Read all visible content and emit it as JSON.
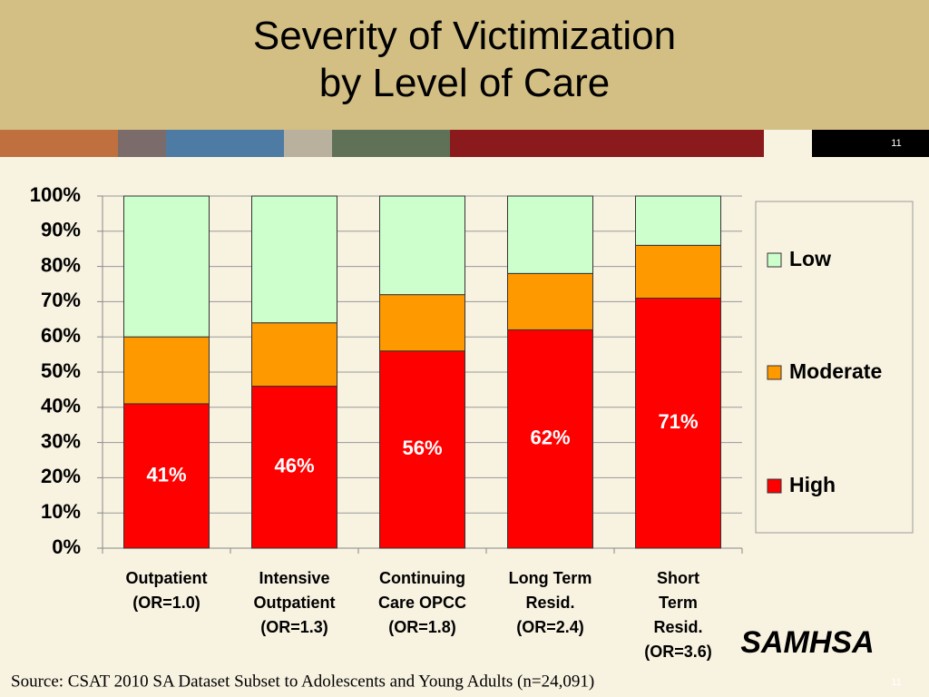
{
  "page_number": "11",
  "source": "Source: CSAT 2010 SA Dataset Subset to Adolescents and Young Adults (n=24,091)",
  "logo": "SAMHSA",
  "chart_data": {
    "type": "stacked_bar",
    "title": "Severity of Victimization\nby Level of Care",
    "categories": [
      "Outpatient\n(OR=1.0)",
      "Intensive\nOutpatient\n(OR=1.3)",
      "Continuing\nCare OPCC\n(OR=1.8)",
      "Long Term\nResid.\n(OR=2.4)",
      "Short\nTerm\nResid.\n(OR=3.6)"
    ],
    "series": [
      {
        "name": "High",
        "color": "#ff0000",
        "values": [
          41,
          46,
          56,
          62,
          71
        ],
        "value_labels": [
          "41%",
          "46%",
          "56%",
          "62%",
          "71%"
        ]
      },
      {
        "name": "Moderate",
        "color": "#ff9900",
        "values": [
          19,
          18,
          16,
          16,
          15
        ]
      },
      {
        "name": "Low",
        "color": "#ccffcc",
        "values": [
          40,
          36,
          28,
          22,
          14
        ]
      }
    ],
    "ylim": [
      0,
      100
    ],
    "yticks": [
      {
        "value": 0,
        "label": "0%"
      },
      {
        "value": 10,
        "label": "10%"
      },
      {
        "value": 20,
        "label": "20%"
      },
      {
        "value": 30,
        "label": "30%"
      },
      {
        "value": 40,
        "label": "40%"
      },
      {
        "value": 50,
        "label": "50%"
      },
      {
        "value": 60,
        "label": "60%"
      },
      {
        "value": 70,
        "label": "70%"
      },
      {
        "value": 80,
        "label": "80%"
      },
      {
        "value": 90,
        "label": "90%"
      },
      {
        "value": 100,
        "label": "100%"
      }
    ],
    "grid": true,
    "legend": "right"
  }
}
